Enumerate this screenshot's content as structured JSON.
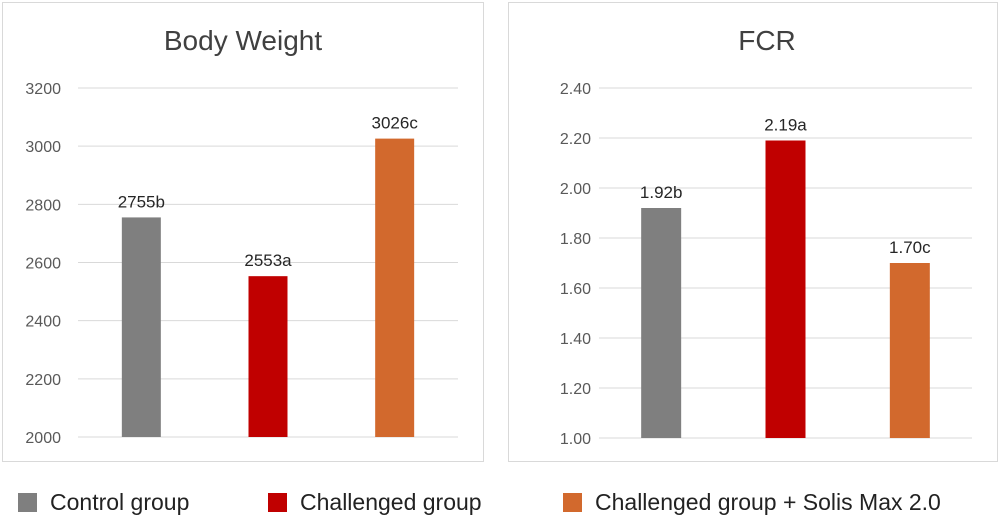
{
  "chart_data": [
    {
      "type": "bar",
      "title": "Body Weight",
      "categories": [
        "Control group",
        "Challenged group",
        "Challenged group + Solis Max 2.0"
      ],
      "values": [
        2755,
        2553,
        3026
      ],
      "data_labels": [
        "2755b",
        "2553a",
        "3026c"
      ],
      "tick_labels": [
        "2000",
        "2200",
        "2400",
        "2600",
        "2800",
        "3000",
        "3200"
      ],
      "ylim": [
        2000,
        3200
      ],
      "ytick_step": 200,
      "grid": true
    },
    {
      "type": "bar",
      "title": "FCR",
      "categories": [
        "Control group",
        "Challenged group",
        "Challenged group + Solis Max 2.0"
      ],
      "values": [
        1.92,
        2.19,
        1.7
      ],
      "data_labels": [
        "1.92b",
        "2.19a",
        "1.70c"
      ],
      "tick_labels": [
        "1.00",
        "1.20",
        "1.40",
        "1.60",
        "1.80",
        "2.00",
        "2.20",
        "2.40"
      ],
      "ylim": [
        1.0,
        2.4
      ],
      "ytick_step": 0.2,
      "grid": true
    }
  ],
  "legend": {
    "placement": "bottom",
    "items": [
      {
        "label": "Control group",
        "color": "#7f7f7f"
      },
      {
        "label": "Challenged group",
        "color": "#c00000"
      },
      {
        "label": "Challenged group + Solis Max 2.0",
        "color": "#d2692d"
      }
    ]
  }
}
